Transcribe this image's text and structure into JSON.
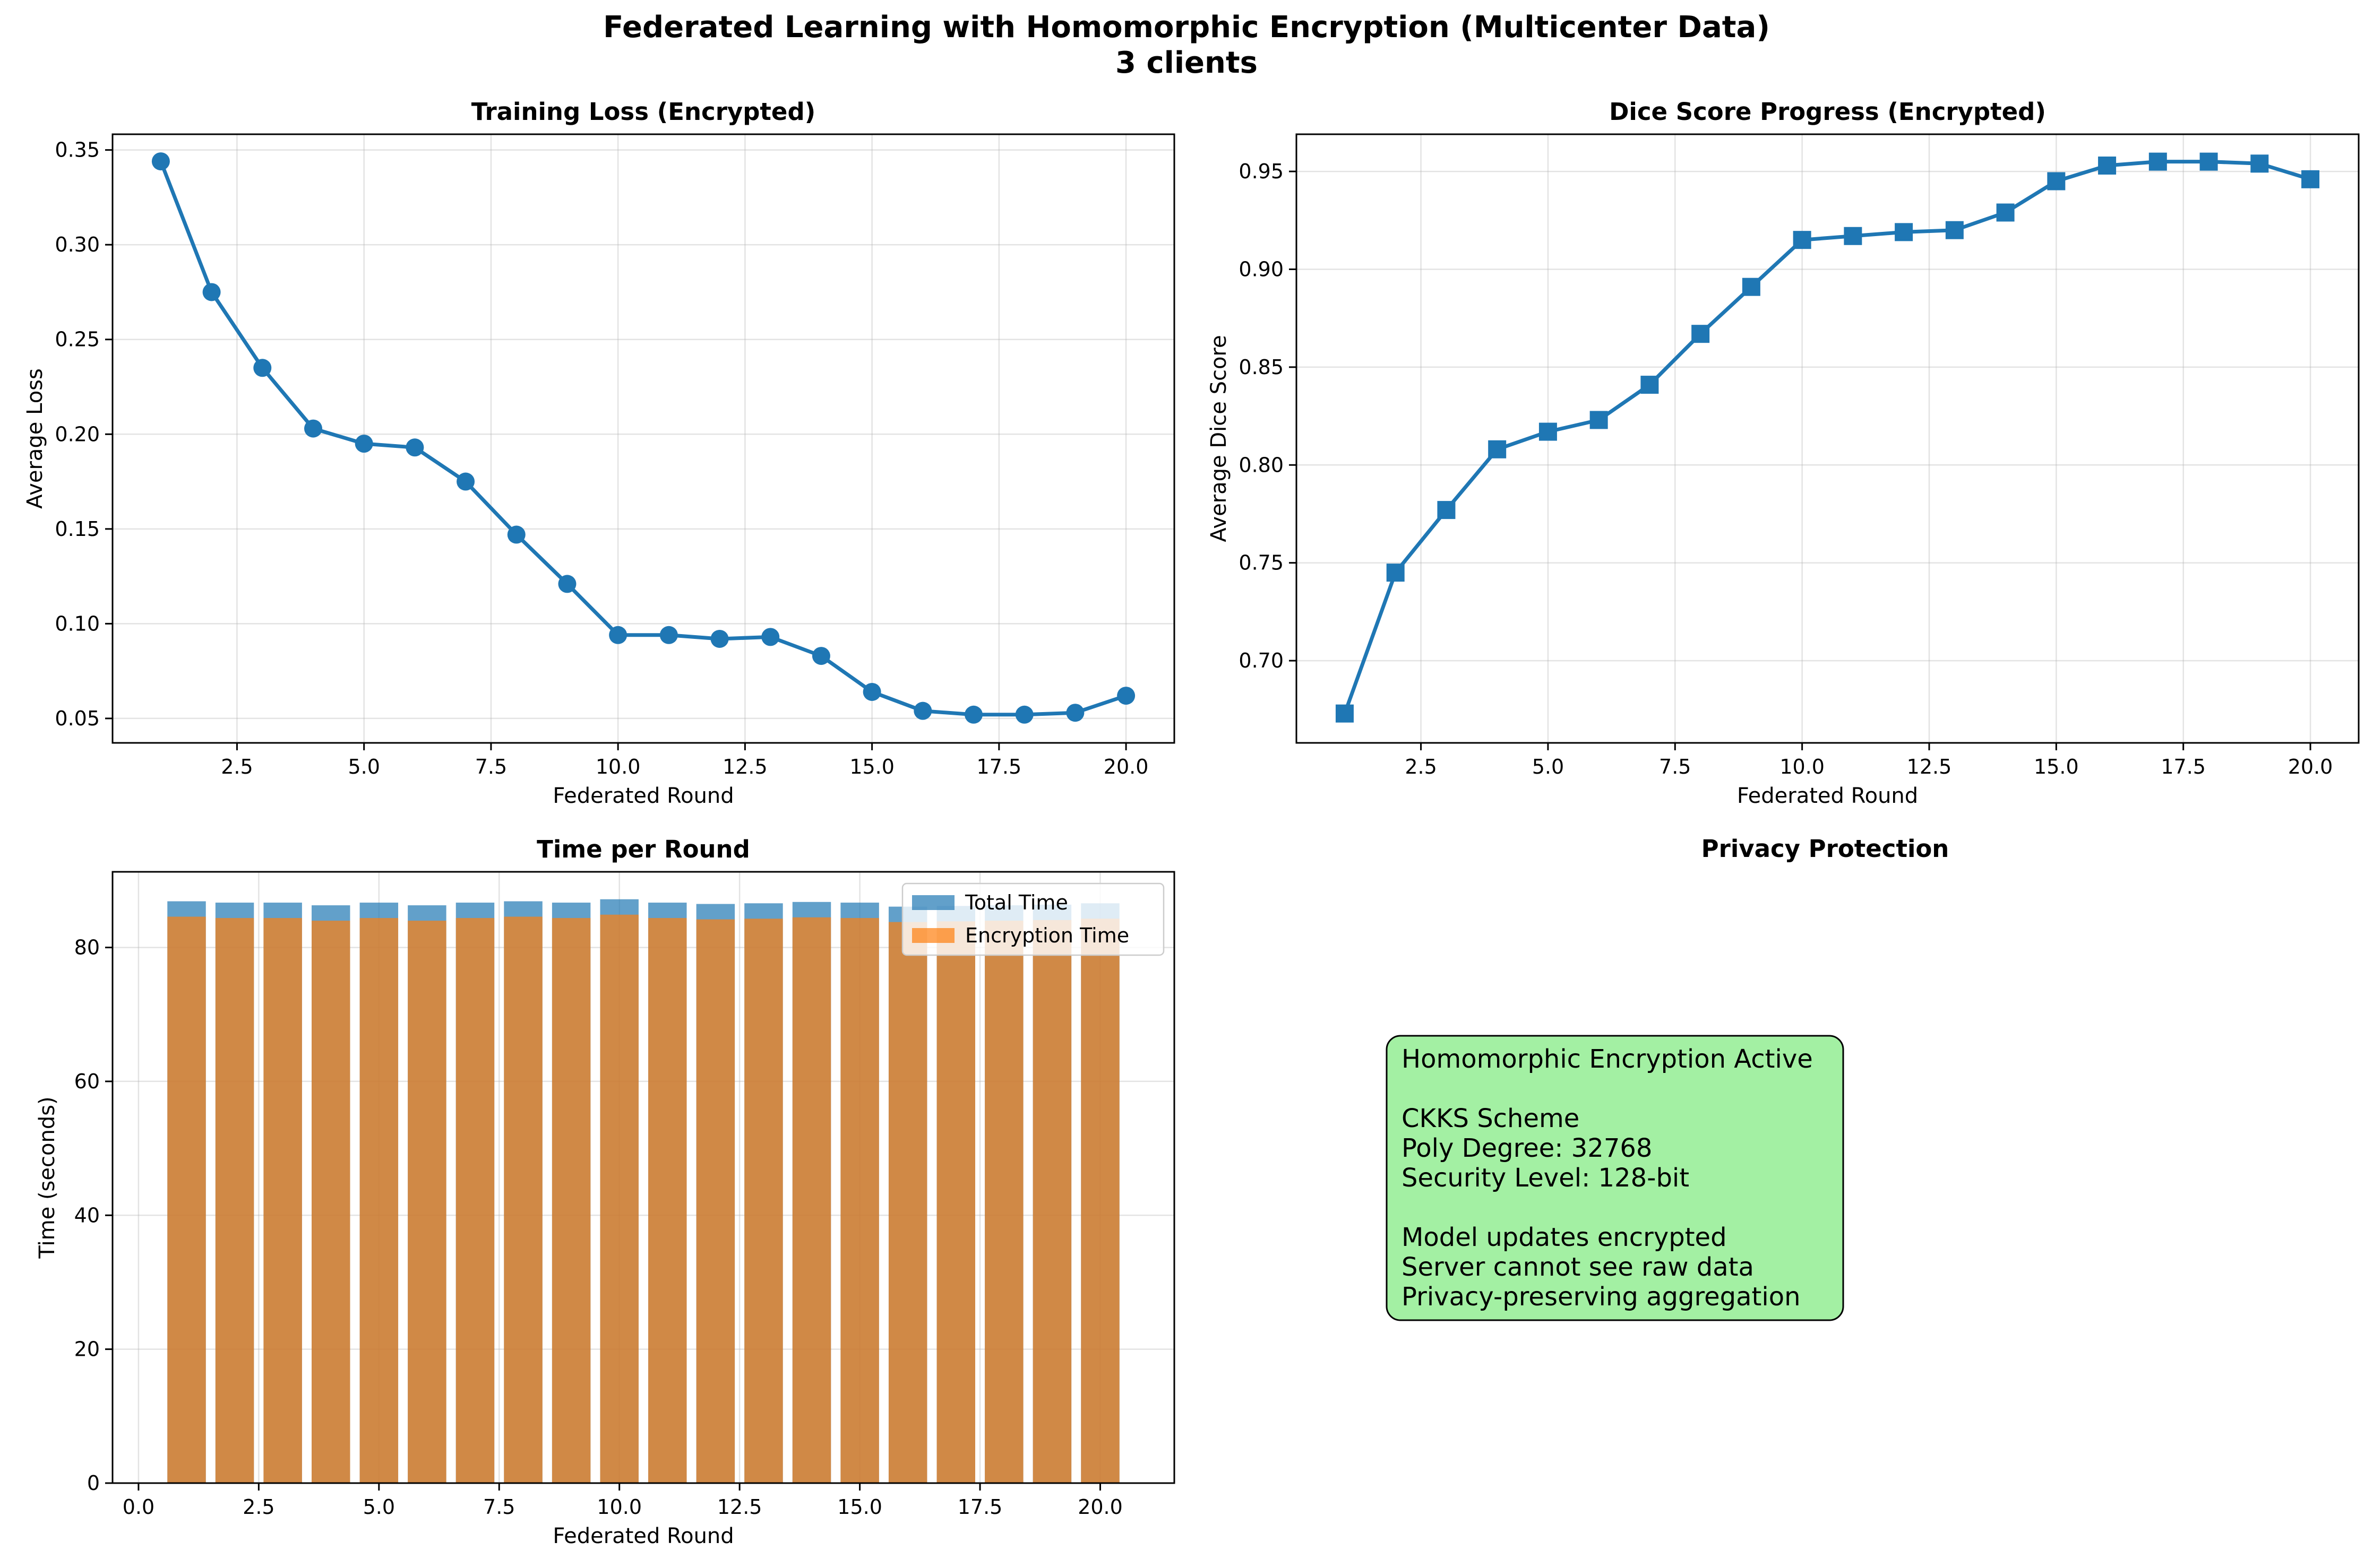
{
  "figure": {
    "title_line1": "Federated Learning with Homomorphic Encryption (Multicenter Data)",
    "title_line2": "3 clients"
  },
  "colors": {
    "line": "#1f77b4",
    "bar_total": "#1f77b4",
    "bar_encryption": "#ff7f0e",
    "info_box_fill": "#a3f0a3"
  },
  "chart_data": [
    {
      "type": "line",
      "title": "Training Loss (Encrypted)",
      "xlabel": "Federated Round",
      "ylabel": "Average Loss",
      "marker": "circle",
      "grid": true,
      "xlim": [
        0.05,
        20.95
      ],
      "ylim": [
        0.0371,
        0.3583
      ],
      "xticks": [
        2.5,
        5.0,
        7.5,
        10.0,
        12.5,
        15.0,
        17.5,
        20.0
      ],
      "xtick_labels": [
        "2.5",
        "5.0",
        "7.5",
        "10.0",
        "12.5",
        "15.0",
        "17.5",
        "20.0"
      ],
      "yticks": [
        0.05,
        0.1,
        0.15,
        0.2,
        0.25,
        0.3,
        0.35
      ],
      "ytick_labels": [
        "0.05",
        "0.10",
        "0.15",
        "0.20",
        "0.25",
        "0.30",
        "0.35"
      ],
      "x": [
        1,
        2,
        3,
        4,
        5,
        6,
        7,
        8,
        9,
        10,
        11,
        12,
        13,
        14,
        15,
        16,
        17,
        18,
        19,
        20
      ],
      "series": [
        {
          "values": [
            0.344,
            0.275,
            0.235,
            0.203,
            0.195,
            0.193,
            0.175,
            0.147,
            0.121,
            0.094,
            0.094,
            0.092,
            0.093,
            0.083,
            0.064,
            0.054,
            0.052,
            0.052,
            0.053,
            0.062
          ]
        }
      ]
    },
    {
      "type": "line",
      "title": "Dice Score Progress (Encrypted)",
      "xlabel": "Federated Round",
      "ylabel": "Average Dice Score",
      "marker": "square",
      "grid": true,
      "xlim": [
        0.05,
        20.95
      ],
      "ylim": [
        0.658,
        0.969
      ],
      "xticks": [
        2.5,
        5.0,
        7.5,
        10.0,
        12.5,
        15.0,
        17.5,
        20.0
      ],
      "xtick_labels": [
        "2.5",
        "5.0",
        "7.5",
        "10.0",
        "12.5",
        "15.0",
        "17.5",
        "20.0"
      ],
      "yticks": [
        0.7,
        0.75,
        0.8,
        0.85,
        0.9,
        0.95
      ],
      "ytick_labels": [
        "0.70",
        "0.75",
        "0.80",
        "0.85",
        "0.90",
        "0.95"
      ],
      "x": [
        1,
        2,
        3,
        4,
        5,
        6,
        7,
        8,
        9,
        10,
        11,
        12,
        13,
        14,
        15,
        16,
        17,
        18,
        19,
        20
      ],
      "series": [
        {
          "values": [
            0.673,
            0.745,
            0.777,
            0.808,
            0.817,
            0.823,
            0.841,
            0.867,
            0.891,
            0.915,
            0.917,
            0.919,
            0.92,
            0.929,
            0.945,
            0.953,
            0.955,
            0.955,
            0.954,
            0.946
          ]
        }
      ]
    },
    {
      "type": "bar",
      "title": "Time per Round",
      "xlabel": "Federated Round",
      "ylabel": "Time (seconds)",
      "grid": true,
      "legend": "top-right",
      "xlim": [
        -0.54,
        21.54
      ],
      "ylim": [
        0,
        91.3
      ],
      "xticks": [
        0.0,
        2.5,
        5.0,
        7.5,
        10.0,
        12.5,
        15.0,
        17.5,
        20.0
      ],
      "xtick_labels": [
        "0.0",
        "2.5",
        "5.0",
        "7.5",
        "10.0",
        "12.5",
        "15.0",
        "17.5",
        "20.0"
      ],
      "yticks": [
        0,
        20,
        40,
        60,
        80
      ],
      "ytick_labels": [
        "0",
        "20",
        "40",
        "60",
        "80"
      ],
      "x": [
        1,
        2,
        3,
        4,
        5,
        6,
        7,
        8,
        9,
        10,
        11,
        12,
        13,
        14,
        15,
        16,
        17,
        18,
        19,
        20
      ],
      "series": [
        {
          "name": "Total Time",
          "values": [
            86.9,
            86.7,
            86.7,
            86.3,
            86.7,
            86.3,
            86.7,
            86.9,
            86.7,
            87.2,
            86.7,
            86.5,
            86.6,
            86.8,
            86.7,
            86.1,
            86.2,
            86.3,
            86.4,
            86.6
          ]
        },
        {
          "name": "Encryption Time",
          "values": [
            84.6,
            84.4,
            84.4,
            84.0,
            84.4,
            84.0,
            84.4,
            84.6,
            84.4,
            84.9,
            84.4,
            84.2,
            84.3,
            84.5,
            84.4,
            83.8,
            83.9,
            84.0,
            84.1,
            84.3
          ]
        }
      ]
    }
  ],
  "privacy_panel": {
    "title": "Privacy Protection",
    "lines": [
      "Homomorphic Encryption Active",
      "",
      "CKKS Scheme",
      "Poly Degree: 32768",
      "Security Level: 128-bit",
      "",
      "Model updates encrypted",
      "Server cannot see raw data",
      "Privacy-preserving aggregation"
    ]
  }
}
